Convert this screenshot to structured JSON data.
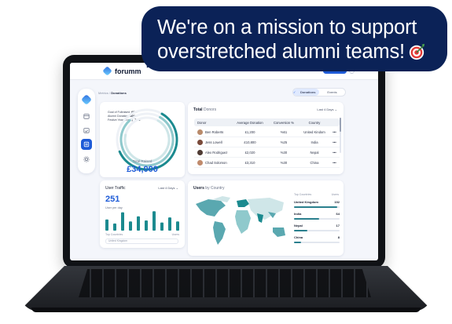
{
  "bubble": {
    "line1": "We're on a mission to support",
    "line2": "overstretched alumni teams!",
    "icon": "target-dart-icon"
  },
  "app": {
    "brand": "forumm",
    "breadcrumb": {
      "parent": "Metrics",
      "separator": " / ",
      "current": "Donations"
    },
    "toggle": {
      "options": [
        "Donations",
        "Events"
      ],
      "active": "Donations"
    }
  },
  "sidebar": {
    "items": [
      {
        "icon": "logo-icon"
      },
      {
        "icon": "calendar-icon"
      },
      {
        "icon": "calendar-check-icon"
      },
      {
        "icon": "dashboard-icon",
        "active": true
      },
      {
        "icon": "settings-icon"
      }
    ]
  },
  "fundraising": {
    "legend": [
      {
        "label": "Goal of Fullraised",
        "value": "60%"
      },
      {
        "label": "Alumni Donation",
        "value": "80%"
      },
      {
        "label": "Festive Year Charity",
        "value": "70%"
      }
    ],
    "total_label": "Total Raised",
    "total_value": "£34,000",
    "rings": [
      {
        "progress": 0.6,
        "color": "#1b8a8f"
      },
      {
        "progress": 0.8,
        "color": "#8fc9cc"
      },
      {
        "progress": 0.7,
        "color": "#cfe6e8"
      }
    ]
  },
  "donors": {
    "title_bold": "Total",
    "title_rest": " Donors",
    "period": "Last 4 Days",
    "columns": [
      "Donor",
      "Average Donation",
      "Conversion %",
      "Country"
    ],
    "rows": [
      {
        "name": "Ben Roberts",
        "avg": "£1,200",
        "conv": "%61",
        "country": "United Kindom",
        "avatar": "#b98a6a"
      },
      {
        "name": "Jess Lowell",
        "avg": "£10,800",
        "conv": "%25",
        "country": "India",
        "avatar": "#7a4a3a"
      },
      {
        "name": "Alex Rodriguez",
        "avg": "£2,020",
        "conv": "%30",
        "country": "Nepal",
        "avatar": "#4f3b33"
      },
      {
        "name": "Chad Solomon",
        "avg": "£3,310",
        "conv": "%30",
        "country": "China",
        "avatar": "#c08a6c"
      }
    ],
    "more_label": "•••"
  },
  "traffic": {
    "title": "User Traffic",
    "period": "Last 4 Days",
    "value": "251",
    "subtitle": "User per day",
    "top_label": "Top Countries",
    "users_label": "Users",
    "input_value": "United Kingdom",
    "bars": [
      0.55,
      0.35,
      0.9,
      0.45,
      0.7,
      0.5,
      0.95,
      0.4,
      0.65,
      0.45
    ]
  },
  "geo": {
    "title_bold": "Users",
    "title_rest": " by Country",
    "top_label": "Top Countries",
    "users_label": "Users",
    "countries": [
      {
        "name": "United Kingdom",
        "value": "192",
        "share": 0.95
      },
      {
        "name": "India",
        "value": "64",
        "share": 0.55
      },
      {
        "name": "Nepal",
        "value": "17",
        "share": 0.3
      },
      {
        "name": "China",
        "value": "8",
        "share": 0.15
      }
    ]
  }
}
